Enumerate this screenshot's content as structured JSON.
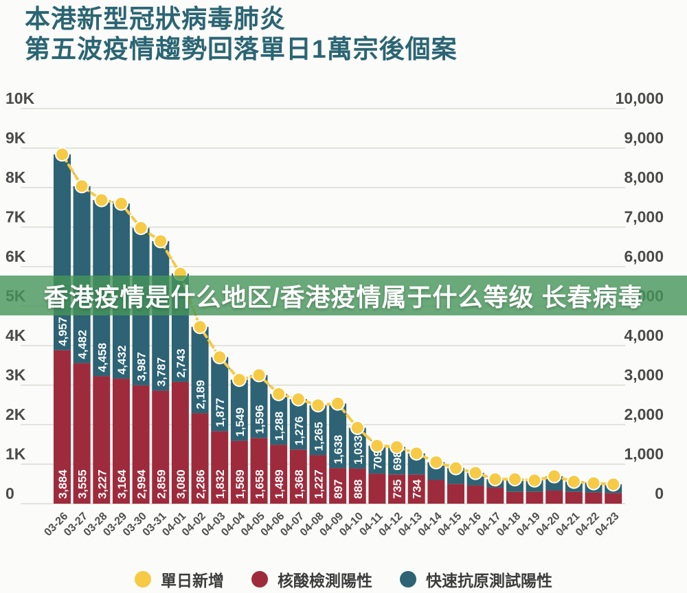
{
  "page": {
    "background": "#fbfbf9"
  },
  "title": {
    "line1": "本港新型冠狀病毒肺炎",
    "line2": "第五波疫情趨勢回落單日1萬宗後個案",
    "color": "#2b6573"
  },
  "overlay_banner": {
    "text": "香港疫情是什么地区/香港疫情属于什么等级 长春病毒",
    "bg_color": "rgba(70,150,90,0.8)",
    "text_color": "#ffffff"
  },
  "legend": {
    "items": [
      {
        "label": "單日新增",
        "color": "#f6ca45"
      },
      {
        "label": "核酸檢測陽性",
        "color": "#9e2b3c"
      },
      {
        "label": "快速抗原測試陽性",
        "color": "#2d6374"
      }
    ]
  },
  "axes": {
    "left_ticks": [
      "0",
      "1K",
      "2K",
      "3K",
      "4K",
      "5K",
      "6K",
      "7K",
      "8K",
      "9K",
      "10K"
    ],
    "right_ticks": [
      "0",
      "1,000",
      "2,000",
      "3,000",
      "4,000",
      "5,000",
      "6,000",
      "7,000",
      "8,000",
      "9,000",
      "10,000"
    ],
    "tick_color": "#4a4a4a",
    "grid_color": "#dad9d5",
    "date_color": "#4f4f4f"
  },
  "chart_data": {
    "type": "bar",
    "subtype": "stacked-bars-with-line",
    "title": "本港新型冠狀病毒肺炎 第五波疫情趨勢回落單日1萬宗後個案",
    "categories": [
      "03-26",
      "03-27",
      "03-28",
      "03-29",
      "03-30",
      "03-31",
      "04-01",
      "04-02",
      "04-03",
      "04-04",
      "04-05",
      "04-06",
      "04-07",
      "04-08",
      "04-09",
      "04-10",
      "04-11",
      "04-12",
      "04-13",
      "04-14",
      "04-15",
      "04-16",
      "04-17",
      "04-18",
      "04-19",
      "04-20",
      "04-21",
      "04-22",
      "04-23"
    ],
    "series": [
      {
        "name": "核酸檢測陽性",
        "color": "#9e2b3c",
        "values": [
          3884,
          3555,
          3227,
          3164,
          2994,
          2859,
          3080,
          2286,
          1832,
          1589,
          1658,
          1489,
          1368,
          1227,
          897,
          888,
          758,
          735,
          734,
          600,
          500,
          460,
          410,
          300,
          300,
          330,
          300,
          280,
          265
        ],
        "data_labels": [
          "3,884",
          "3,555",
          "3,227",
          "3,164",
          "2,994",
          "2,859",
          "3,080",
          "2,286",
          "1,832",
          "1,589",
          "1,658",
          "1,489",
          "1,368",
          "1,227",
          "897",
          "888",
          "",
          "735",
          "734",
          "",
          "",
          "",
          "",
          "",
          "",
          "",
          "",
          "",
          ""
        ]
      },
      {
        "name": "快速抗原測試陽性",
        "color": "#2d6374",
        "values": [
          4957,
          4482,
          4458,
          4432,
          3987,
          3787,
          2743,
          2189,
          1877,
          1549,
          1596,
          1288,
          1276,
          1265,
          1638,
          1033,
          709,
          698,
          538,
          450,
          400,
          320,
          210,
          320,
          290,
          365,
          257,
          240,
          225
        ],
        "data_labels": [
          "4,957",
          "4,482",
          "4,458",
          "4,432",
          "3,987",
          "3,787",
          "2,743",
          "2,189",
          "1,877",
          "1,549",
          "1,596",
          "1,288",
          "1,276",
          "1,265",
          "1,638",
          "1,033",
          "709",
          "698",
          "",
          "",
          "",
          "",
          "",
          "",
          "",
          "",
          "",
          "",
          ""
        ]
      }
    ],
    "line_series": {
      "name": "單日新增",
      "color": "#f6ca45",
      "values": [
        8841,
        8037,
        7685,
        7596,
        6981,
        6646,
        5823,
        4475,
        3709,
        3138,
        3254,
        2777,
        2644,
        2492,
        2535,
        1921,
        1467,
        1433,
        1272,
        1050,
        900,
        780,
        620,
        620,
        590,
        695,
        557,
        520,
        490
      ]
    },
    "ylim": [
      0,
      10000
    ],
    "y_tick_step": 1000,
    "grid": true,
    "legend_position": "bottom"
  }
}
